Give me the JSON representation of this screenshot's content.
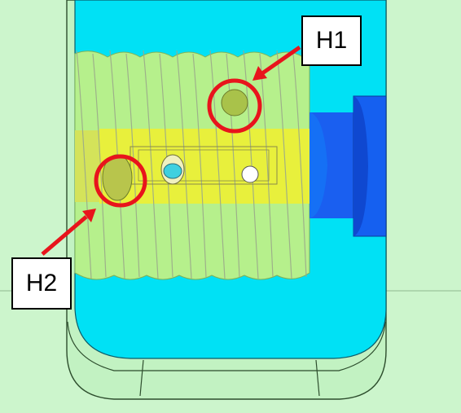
{
  "labels": {
    "h1": "H1",
    "h2": "H2"
  },
  "colors": {
    "background": "#ccf5cc",
    "housing": "#00e1f5",
    "spring": "#b6f08c",
    "core": "#e8f03c",
    "shaft": "#1a5ff0",
    "highlight": "#e8141c"
  }
}
